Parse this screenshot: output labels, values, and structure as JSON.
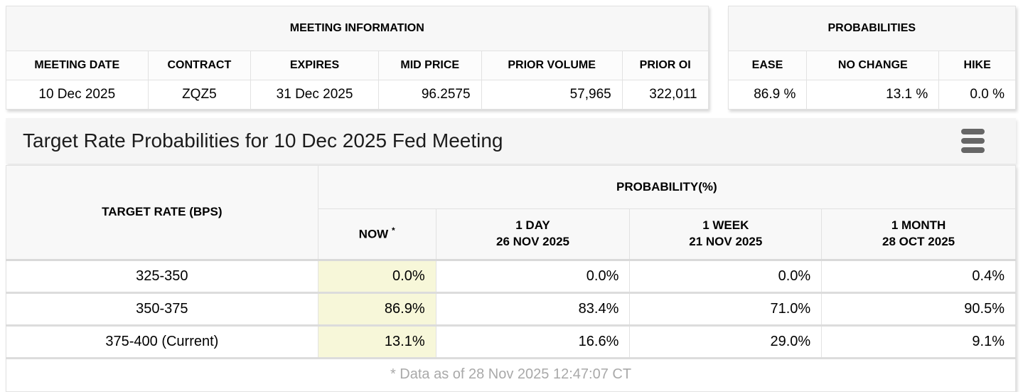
{
  "meeting_information": {
    "title": "MEETING INFORMATION",
    "columns": [
      "MEETING DATE",
      "CONTRACT",
      "EXPIRES",
      "MID PRICE",
      "PRIOR VOLUME",
      "PRIOR OI"
    ],
    "row": {
      "meeting_date": "10 Dec 2025",
      "contract": "ZQZ5",
      "expires": "31 Dec 2025",
      "mid_price": "96.2575",
      "prior_volume": "57,965",
      "prior_oi": "322,011"
    }
  },
  "probabilities": {
    "title": "PROBABILITIES",
    "columns": [
      "EASE",
      "NO CHANGE",
      "HIKE"
    ],
    "row": {
      "ease": "86.9 %",
      "no_change": "13.1 %",
      "hike": "0.0 %"
    }
  },
  "chart_header": {
    "title": "Target Rate Probabilities for 10 Dec 2025 Fed Meeting",
    "menu_icon": "hamburger-icon"
  },
  "rate_table": {
    "target_rate_header": "TARGET RATE (BPS)",
    "probability_header": "PROBABILITY(%)",
    "column_headers": {
      "now_label": "NOW",
      "now_footnote_marker": "*",
      "day_label": "1 DAY",
      "day_date": "26 NOV 2025",
      "week_label": "1 WEEK",
      "week_date": "21 NOV 2025",
      "month_label": "1 MONTH",
      "month_date": "28 OCT 2025"
    },
    "rows": [
      {
        "target_rate": "325-350",
        "now": "0.0%",
        "day": "0.0%",
        "week": "0.0%",
        "month": "0.4%"
      },
      {
        "target_rate": "350-375",
        "now": "86.9%",
        "day": "83.4%",
        "week": "71.0%",
        "month": "90.5%"
      },
      {
        "target_rate": "375-400 (Current)",
        "now": "13.1%",
        "day": "16.6%",
        "week": "29.0%",
        "month": "9.1%"
      }
    ],
    "footnote": "* Data as of 28 Nov 2025 12:47:07 CT"
  },
  "colors": {
    "now_column_highlight": "#f7f7d9",
    "header_background": "#f7f7f7",
    "titlebar_background": "#f5f5f5",
    "border": "#e2e2e2",
    "footnote_text": "#a9a9a9",
    "hamburger_icon": "#666666"
  }
}
